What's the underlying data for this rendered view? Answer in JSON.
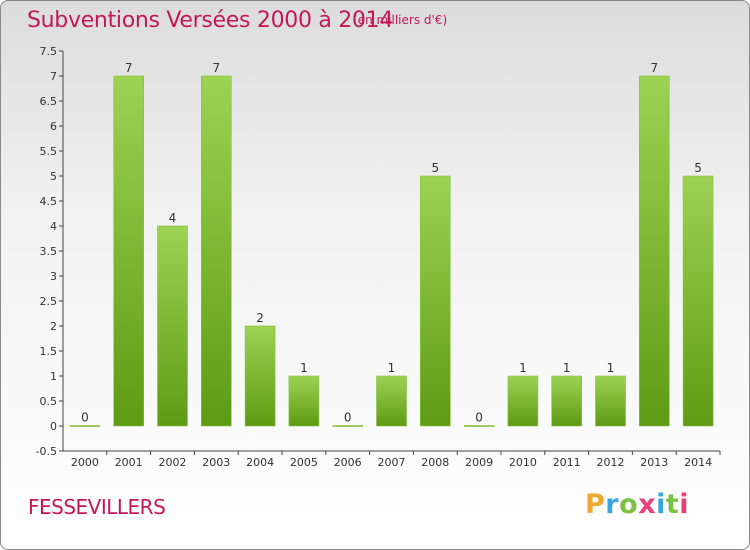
{
  "header": {
    "title": "Subventions Versées 2000 à 2014",
    "unit": "(en milliers d'€)"
  },
  "footer": {
    "commune": "FESSEVILLERS",
    "logo": "Proxiti"
  },
  "colors": {
    "title": "#c2185b",
    "bar_top": "#9dd254",
    "bar_bottom": "#5e9b14"
  },
  "chart_data": {
    "type": "bar",
    "title": "Subventions Versées 2000 à 2014",
    "subtitle": "(en milliers d'€)",
    "categories": [
      "2000",
      "2001",
      "2002",
      "2003",
      "2004",
      "2005",
      "2006",
      "2007",
      "2008",
      "2009",
      "2010",
      "2011",
      "2012",
      "2013",
      "2014"
    ],
    "values": [
      0,
      7,
      4,
      7,
      2,
      1,
      0,
      1,
      5,
      0,
      1,
      1,
      1,
      7,
      5
    ],
    "value_labels": [
      "0",
      "7",
      "4",
      "7",
      "2",
      "1",
      "0",
      "1",
      "5",
      "0",
      "1",
      "1",
      "1",
      "7",
      "5"
    ],
    "y_ticks": [
      "-0.5",
      "0",
      "0.5",
      "1",
      "1.5",
      "2",
      "2.5",
      "3",
      "3.5",
      "4",
      "4.5",
      "5",
      "5.5",
      "6",
      "6.5",
      "7",
      "7.5"
    ],
    "ylim": [
      -0.5,
      7.5
    ],
    "grid": false
  }
}
